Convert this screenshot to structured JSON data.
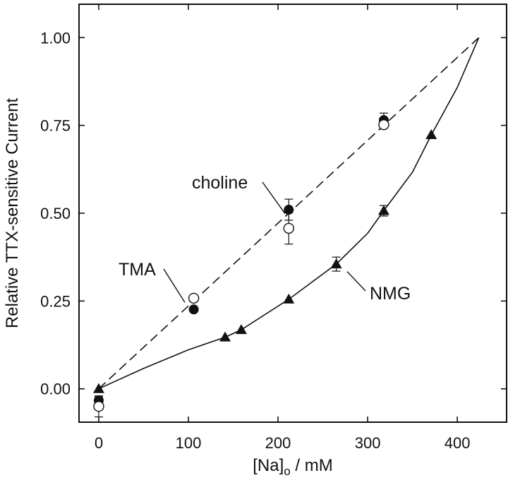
{
  "chart_data": {
    "type": "scatter",
    "title": "",
    "xlabel": {
      "main": "[Na]",
      "sub": "o",
      "rest": " / mM"
    },
    "ylabel": "Relative TTX-sensitive Current",
    "xlim": [
      -22,
      455
    ],
    "ylim": [
      -0.095,
      1.095
    ],
    "xticks": [
      0,
      100,
      200,
      300,
      400
    ],
    "xtick_labels": [
      "0",
      "100",
      "200",
      "300",
      "400"
    ],
    "yticks": [
      0,
      0.25,
      0.5,
      0.75,
      1.0
    ],
    "ytick_labels": [
      "0.00",
      "0.25",
      "0.50",
      "0.75",
      "1.00"
    ],
    "grid": false,
    "series": [
      {
        "name": "choline",
        "marker": "filled-circle",
        "points": [
          {
            "x": 0,
            "y": -0.033,
            "err": 0.01
          },
          {
            "x": 106,
            "y": 0.226,
            "err": 0
          },
          {
            "x": 212,
            "y": 0.51,
            "err": 0.03
          },
          {
            "x": 318,
            "y": 0.765,
            "err": 0.02
          }
        ]
      },
      {
        "name": "TMA",
        "marker": "open-circle",
        "points": [
          {
            "x": 0,
            "y": -0.05,
            "err": 0.03
          },
          {
            "x": 106,
            "y": 0.258,
            "err": 0
          },
          {
            "x": 212,
            "y": 0.457,
            "err": 0.045
          },
          {
            "x": 318,
            "y": 0.752,
            "err": 0
          }
        ]
      },
      {
        "name": "NMG",
        "marker": "filled-triangle",
        "points": [
          {
            "x": 0,
            "y": 0.0,
            "err": 0
          },
          {
            "x": 141,
            "y": 0.147,
            "err": 0
          },
          {
            "x": 159,
            "y": 0.168,
            "err": 0
          },
          {
            "x": 212,
            "y": 0.255,
            "err": 0
          },
          {
            "x": 265,
            "y": 0.355,
            "err": 0.02
          },
          {
            "x": 318,
            "y": 0.507,
            "err": 0.015
          },
          {
            "x": 371,
            "y": 0.723,
            "err": 0
          }
        ]
      }
    ],
    "fits": [
      {
        "name": "linear-fit",
        "style": "dashed",
        "x": [
          0,
          424
        ],
        "y": [
          0,
          1.0
        ]
      },
      {
        "name": "NMG-fit",
        "style": "solid",
        "x": [
          0,
          50,
          100,
          141,
          159,
          212,
          265,
          300,
          318,
          350,
          371,
          400,
          424
        ],
        "y": [
          0,
          0.058,
          0.111,
          0.147,
          0.168,
          0.255,
          0.355,
          0.443,
          0.507,
          0.617,
          0.723,
          0.858,
          1.0
        ]
      }
    ],
    "annotations": [
      {
        "text": "choline",
        "target": {
          "x": 208,
          "y": 0.515
        }
      },
      {
        "text": "TMA",
        "target": {
          "x": 103,
          "y": 0.262
        }
      },
      {
        "text": "NMG",
        "target": {
          "x": 268,
          "y": 0.35
        }
      }
    ]
  }
}
